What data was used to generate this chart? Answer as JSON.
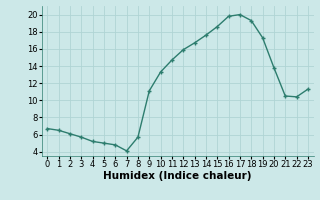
{
  "x": [
    0,
    1,
    2,
    3,
    4,
    5,
    6,
    7,
    8,
    9,
    10,
    11,
    12,
    13,
    14,
    15,
    16,
    17,
    18,
    19,
    20,
    21,
    22,
    23
  ],
  "y": [
    6.7,
    6.5,
    6.1,
    5.7,
    5.2,
    5.0,
    4.8,
    4.1,
    5.7,
    11.1,
    13.3,
    14.7,
    15.9,
    16.7,
    17.6,
    18.6,
    19.8,
    20.0,
    19.3,
    17.3,
    13.8,
    10.5,
    10.4,
    11.3
  ],
  "line_color": "#2d7d6e",
  "marker": "+",
  "marker_size": 3,
  "xlabel": "Humidex (Indice chaleur)",
  "xlim": [
    -0.5,
    23.5
  ],
  "ylim": [
    3.5,
    21.0
  ],
  "yticks": [
    4,
    6,
    8,
    10,
    12,
    14,
    16,
    18,
    20
  ],
  "xtick_labels": [
    "0",
    "1",
    "2",
    "3",
    "4",
    "5",
    "6",
    "7",
    "8",
    "9",
    "10",
    "11",
    "12",
    "13",
    "14",
    "15",
    "16",
    "17",
    "18",
    "19",
    "20",
    "21",
    "22",
    "23"
  ],
  "bg_color": "#cce8e8",
  "grid_color": "#b0d4d4",
  "tick_fontsize": 6,
  "xlabel_fontsize": 7.5,
  "line_width": 1.0
}
